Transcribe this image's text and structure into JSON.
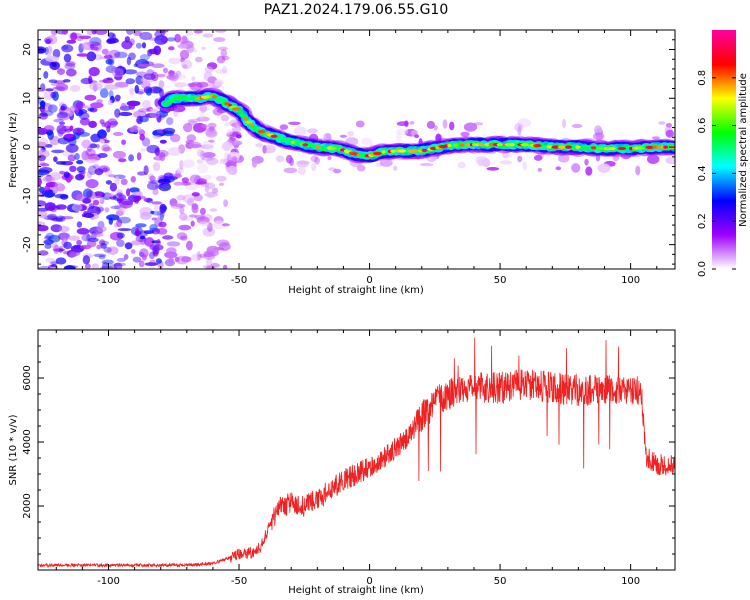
{
  "figure_title": "PAZ1.2024.179.06.55.G10",
  "chart_data": [
    {
      "type": "heatmap",
      "xlabel": "Height of straight line (km)",
      "ylabel": "Frequency (Hz)",
      "xlim": [
        -127,
        117
      ],
      "ylim": [
        -25,
        24
      ],
      "xticks": [
        -100,
        -50,
        0,
        50,
        100
      ],
      "yticks": [
        -20,
        -10,
        0,
        10,
        20
      ],
      "colorbar": {
        "label": "Normalized spectral amplitude",
        "range": [
          0,
          1
        ],
        "ticks": [
          0.0,
          0.2,
          0.4,
          0.6,
          0.8
        ],
        "colors": [
          "#ffffff",
          "#9e00ff",
          "#0000ff",
          "#00ffff",
          "#00ff00",
          "#ffff00",
          "#ff0000",
          "#ff00a0"
        ]
      },
      "ridge": [
        {
          "x": -78,
          "y": 9.0
        },
        {
          "x": -75,
          "y": 10.0
        },
        {
          "x": -70,
          "y": 10.0
        },
        {
          "x": -65,
          "y": 10.0
        },
        {
          "x": -60,
          "y": 10.5
        },
        {
          "x": -55,
          "y": 9.0
        },
        {
          "x": -50,
          "y": 7.5
        },
        {
          "x": -47,
          "y": 5.5
        },
        {
          "x": -43,
          "y": 3.5
        },
        {
          "x": -38,
          "y": 2.5
        },
        {
          "x": -33,
          "y": 1.5
        },
        {
          "x": -28,
          "y": 0.8
        },
        {
          "x": -20,
          "y": 0.0
        },
        {
          "x": -12,
          "y": -0.3
        },
        {
          "x": -5,
          "y": -1.5
        },
        {
          "x": 0,
          "y": -1.8
        },
        {
          "x": 5,
          "y": -1.0
        },
        {
          "x": 10,
          "y": -0.8
        },
        {
          "x": 20,
          "y": -0.8
        },
        {
          "x": 30,
          "y": 0.3
        },
        {
          "x": 40,
          "y": 0.5
        },
        {
          "x": 50,
          "y": 0.5
        },
        {
          "x": 60,
          "y": 0.5
        },
        {
          "x": 70,
          "y": 0.0
        },
        {
          "x": 80,
          "y": 0.0
        },
        {
          "x": 90,
          "y": -0.3
        },
        {
          "x": 100,
          "y": -0.3
        },
        {
          "x": 110,
          "y": 0.0
        },
        {
          "x": 117,
          "y": 0.0
        }
      ]
    },
    {
      "type": "line",
      "xlabel": "Height of straight line (km)",
      "ylabel": "SNR (10 * v/v)",
      "xlim": [
        -127,
        117
      ],
      "ylim": [
        0,
        7500
      ],
      "xticks": [
        -100,
        -50,
        0,
        50,
        100
      ],
      "yticks": [
        2000,
        4000,
        6000
      ],
      "color": "#ee2222",
      "envelope": [
        {
          "x": -127,
          "y": 150
        },
        {
          "x": -100,
          "y": 150
        },
        {
          "x": -70,
          "y": 150
        },
        {
          "x": -60,
          "y": 200
        },
        {
          "x": -55,
          "y": 350
        },
        {
          "x": -50,
          "y": 500
        },
        {
          "x": -45,
          "y": 550
        },
        {
          "x": -42,
          "y": 700
        },
        {
          "x": -38,
          "y": 1400
        },
        {
          "x": -35,
          "y": 1900
        },
        {
          "x": -30,
          "y": 2100
        },
        {
          "x": -25,
          "y": 2000
        },
        {
          "x": -20,
          "y": 2200
        },
        {
          "x": -15,
          "y": 2500
        },
        {
          "x": -10,
          "y": 2800
        },
        {
          "x": -5,
          "y": 3000
        },
        {
          "x": 0,
          "y": 3200
        },
        {
          "x": 5,
          "y": 3500
        },
        {
          "x": 10,
          "y": 3800
        },
        {
          "x": 15,
          "y": 4200
        },
        {
          "x": 20,
          "y": 4800
        },
        {
          "x": 25,
          "y": 5200
        },
        {
          "x": 30,
          "y": 5500
        },
        {
          "x": 40,
          "y": 5700
        },
        {
          "x": 50,
          "y": 5700
        },
        {
          "x": 60,
          "y": 5800
        },
        {
          "x": 70,
          "y": 5700
        },
        {
          "x": 80,
          "y": 5600
        },
        {
          "x": 90,
          "y": 5700
        },
        {
          "x": 100,
          "y": 5600
        },
        {
          "x": 104,
          "y": 5600
        },
        {
          "x": 106,
          "y": 3500
        },
        {
          "x": 110,
          "y": 3300
        },
        {
          "x": 117,
          "y": 3300
        }
      ]
    }
  ]
}
